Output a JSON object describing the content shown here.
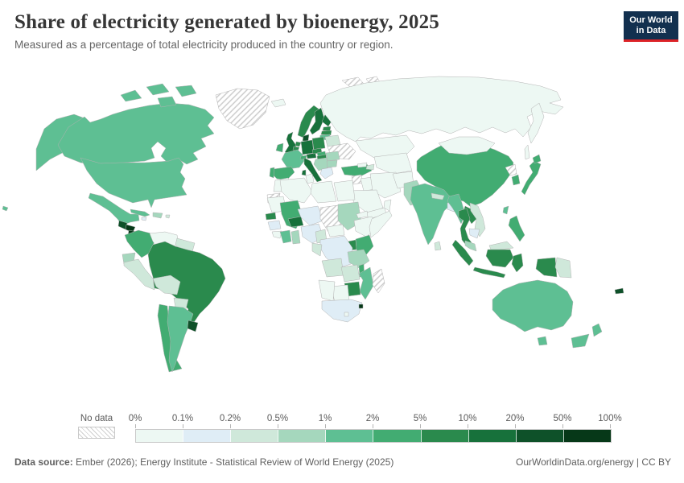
{
  "header": {
    "title": "Share of electricity generated by bioenergy, 2025",
    "subtitle": "Measured as a percentage of total electricity produced in the country or region.",
    "logo_line1": "Our World",
    "logo_line2": "in Data"
  },
  "footer": {
    "source_label": "Data source:",
    "source_text": " Ember (2026); Energy Institute - Statistical Review of World Energy (2025)",
    "url": "OurWorldinData.org/energy",
    "separator": " | ",
    "license": "CC BY"
  },
  "chart_data": {
    "type": "choropleth",
    "title": "Share of electricity generated by bioenergy, 2025",
    "unit": "%",
    "legend": {
      "no_data_label": "No data",
      "tick_labels": [
        "0%",
        "0.1%",
        "0.2%",
        "0.5%",
        "1%",
        "2%",
        "5%",
        "10%",
        "20%",
        "50%",
        "100%"
      ]
    },
    "palette": [
      "#edf8f3",
      "#dfedf6",
      "#cfe8da",
      "#a5d7bd",
      "#5ebf93",
      "#42ac72",
      "#2a8a4d",
      "#17713b",
      "#0e5129",
      "#063818"
    ],
    "colors": {
      "no_data_hatch": "#c9c9c9",
      "border": "#b3b3b3",
      "accent_navy": "#12304f",
      "accent_red": "#dc2227"
    },
    "bin_ranges": [
      "0-0.1%",
      "0.1-0.2%",
      "0.2-0.5%",
      "0.5-1%",
      "1-2%",
      "2-5%",
      "5-10%",
      "10-20%",
      "20-50%",
      "50-100%"
    ],
    "region_bins": {
      "united_states": 4,
      "canada": 4,
      "greenland": "nd",
      "mexico": 4,
      "guatemala": 8,
      "honduras": 9,
      "nicaragua": 9,
      "costa_rica": 3,
      "panama": 2,
      "cuba": 4,
      "jamaica": 1,
      "hispaniola": 3,
      "puerto_rico": 2,
      "colombia": 5,
      "venezuela": 0,
      "guyanas": 2,
      "ecuador": 3,
      "peru": 2,
      "brazil": 6,
      "bolivia": 2,
      "paraguay": 2,
      "chile": 5,
      "argentina": 4,
      "uruguay": 8,
      "iceland": 0,
      "ireland": 5,
      "united_kingdom": 7,
      "norway": 6,
      "sweden": 7,
      "finland": 7,
      "denmark": 8,
      "estonia": 6,
      "latvia": 6,
      "lithuania": 4,
      "poland": 6,
      "germany": 7,
      "netherlands": 6,
      "belgium": 6,
      "france": 4,
      "spain": 5,
      "portugal": 5,
      "italy": 7,
      "switzerland": 5,
      "austria": 7,
      "czechia": 6,
      "slovakia": 5,
      "hungary": 6,
      "balkans": 3,
      "romania": 3,
      "bulgaria": 3,
      "greece": 1,
      "belarus": 2,
      "ukraine": "nd",
      "turkey": 5,
      "svalbard": "nd",
      "russia": 0,
      "kazakhstan": 0,
      "central_asia": 0,
      "georgia": 0,
      "azerbaijan": 2,
      "syria": "nd",
      "iraq": 0,
      "iran": 0,
      "saudi_arabia": 0,
      "yemen": 0,
      "oman": 0,
      "afghanistan": 0,
      "pakistan": 3,
      "india": 4,
      "nepal": 2,
      "bangladesh": 1,
      "sri_lanka": 2,
      "myanmar": 4,
      "thailand": 6,
      "laos": 6,
      "vietnam": 2,
      "cambodia": 1,
      "malaysia": 3,
      "malaysia_borneo": 2,
      "indonesia": 6,
      "philippines": 5,
      "china": 5,
      "mongolia": 0,
      "north_korea": "nd",
      "south_korea": 5,
      "japan": 5,
      "taiwan": 4,
      "papua_new_guinea": 2,
      "australia": 4,
      "new_zealand": 4,
      "fiji": 8,
      "morocco": 0,
      "western_sahara": "nd",
      "algeria": 0,
      "tunisia": 0,
      "libya": 0,
      "egypt": 0,
      "mauritania": 0,
      "mali": 5,
      "senegal": 6,
      "guinea": 1,
      "sierra_leone_liberia": 0,
      "cote_divoire": 4,
      "ghana": 3,
      "burkina_faso": 7,
      "niger": 1,
      "nigeria": 1,
      "chad": "nd",
      "sudan": 3,
      "eritrea": 0,
      "ethiopia": 0,
      "somalia": 0,
      "kenya": 5,
      "uganda": 6,
      "tanzania": 3,
      "drc": 1,
      "cameroon": 2,
      "central_african_republic": 0,
      "congo_gabon": 2,
      "angola": 2,
      "zambia": 2,
      "malawi": 5,
      "mozambique": 4,
      "zimbabwe": 6,
      "botswana": 0,
      "namibia": 0,
      "south_africa": 1,
      "eswatini": 9,
      "lesotho": 0,
      "madagascar": "nd"
    }
  }
}
